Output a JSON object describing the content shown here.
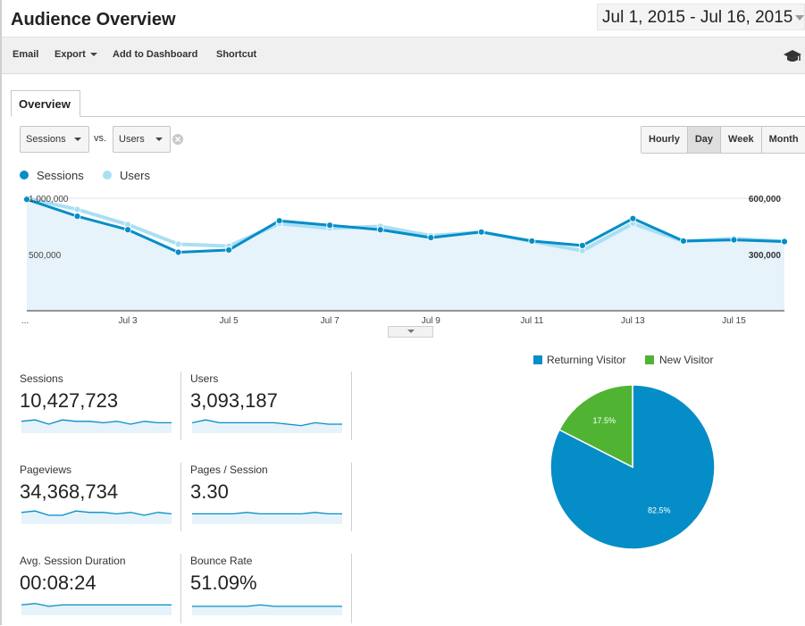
{
  "header": {
    "title": "Audience Overview",
    "date_range": "Jul 1, 2015 - Jul 16, 2015"
  },
  "toolbar": {
    "email": "Email",
    "export": "Export",
    "add_to_dashboard": "Add to Dashboard",
    "shortcut": "Shortcut",
    "help_icon": "graduation-cap-icon"
  },
  "tabs": [
    {
      "label": "Overview",
      "active": true
    }
  ],
  "selectors": {
    "primary_metric": "Sessions",
    "vs_label": "vs.",
    "secondary_metric": "Users"
  },
  "granularity": {
    "options": [
      "Hourly",
      "Day",
      "Week",
      "Month"
    ],
    "active": "Day"
  },
  "legend": [
    {
      "name": "Sessions",
      "color": "#058dc7"
    },
    {
      "name": "Users",
      "color": "#aadff3"
    }
  ],
  "chart_data": [
    {
      "type": "line",
      "x": [
        "Jul 1",
        "Jul 2",
        "Jul 3",
        "Jul 4",
        "Jul 5",
        "Jul 6",
        "Jul 7",
        "Jul 8",
        "Jul 9",
        "Jul 10",
        "Jul 11",
        "Jul 12",
        "Jul 13",
        "Jul 14",
        "Jul 15",
        "Jul 16"
      ],
      "x_tick_labels": [
        "...",
        "Jul 3",
        "Jul 5",
        "Jul 7",
        "Jul 9",
        "Jul 11",
        "Jul 13",
        "Jul 15"
      ],
      "series": [
        {
          "name": "Sessions",
          "axis": "left",
          "color": "#058dc7",
          "values": [
            990000,
            840000,
            720000,
            520000,
            540000,
            800000,
            760000,
            720000,
            650000,
            700000,
            620000,
            580000,
            820000,
            620000,
            630000,
            615000
          ]
        },
        {
          "name": "Users",
          "axis": "right",
          "color": "#aadff3",
          "values": [
            600000,
            540000,
            460000,
            355000,
            345000,
            465000,
            440000,
            450000,
            400000,
            420000,
            370000,
            320000,
            465000,
            370000,
            385000,
            370000
          ]
        }
      ],
      "left_axis": {
        "ticks": [
          "1,000,000",
          "500,000"
        ],
        "tick_values": [
          1000000,
          500000
        ],
        "ylim": [
          0,
          1000000
        ]
      },
      "right_axis": {
        "ticks": [
          "600,000",
          "300,000"
        ],
        "tick_values": [
          600000,
          300000
        ],
        "ylim": [
          0,
          600000
        ]
      },
      "area_fill": "#e6f3fa",
      "grid": true
    },
    {
      "type": "pie",
      "categories": [
        "Returning Visitor",
        "New Visitor"
      ],
      "values": [
        82.5,
        17.5
      ],
      "data_labels": [
        "82.5%",
        "17.5%"
      ],
      "colors": [
        "#058dc7",
        "#50b432"
      ],
      "legend_position": "top"
    }
  ],
  "scorecards": [
    {
      "label": "Sessions",
      "value": "10,427,723",
      "spark": [
        7,
        8,
        5,
        8,
        7,
        7,
        6,
        7,
        5,
        7,
        6,
        6
      ]
    },
    {
      "label": "Users",
      "value": "3,093,187",
      "spark": [
        6,
        8,
        6,
        6,
        6,
        6,
        6,
        5,
        4,
        6,
        5,
        5
      ]
    },
    {
      "label": "Pageviews",
      "value": "34,368,734",
      "spark": [
        7,
        8,
        5,
        5,
        8,
        7,
        7,
        6,
        7,
        5,
        7,
        6
      ]
    },
    {
      "label": "Pages / Session",
      "value": "3.30",
      "spark": [
        6,
        6,
        6,
        6,
        7,
        6,
        6,
        6,
        6,
        7,
        6,
        6
      ]
    },
    {
      "label": "Avg. Session Duration",
      "value": "00:08:24",
      "spark": [
        6,
        7,
        5,
        6,
        6,
        6,
        6,
        6,
        6,
        6,
        6,
        6
      ]
    },
    {
      "label": "Bounce Rate",
      "value": "51.09%",
      "spark": [
        5,
        5,
        5,
        5,
        5,
        6,
        5,
        5,
        5,
        5,
        5,
        5
      ]
    }
  ]
}
